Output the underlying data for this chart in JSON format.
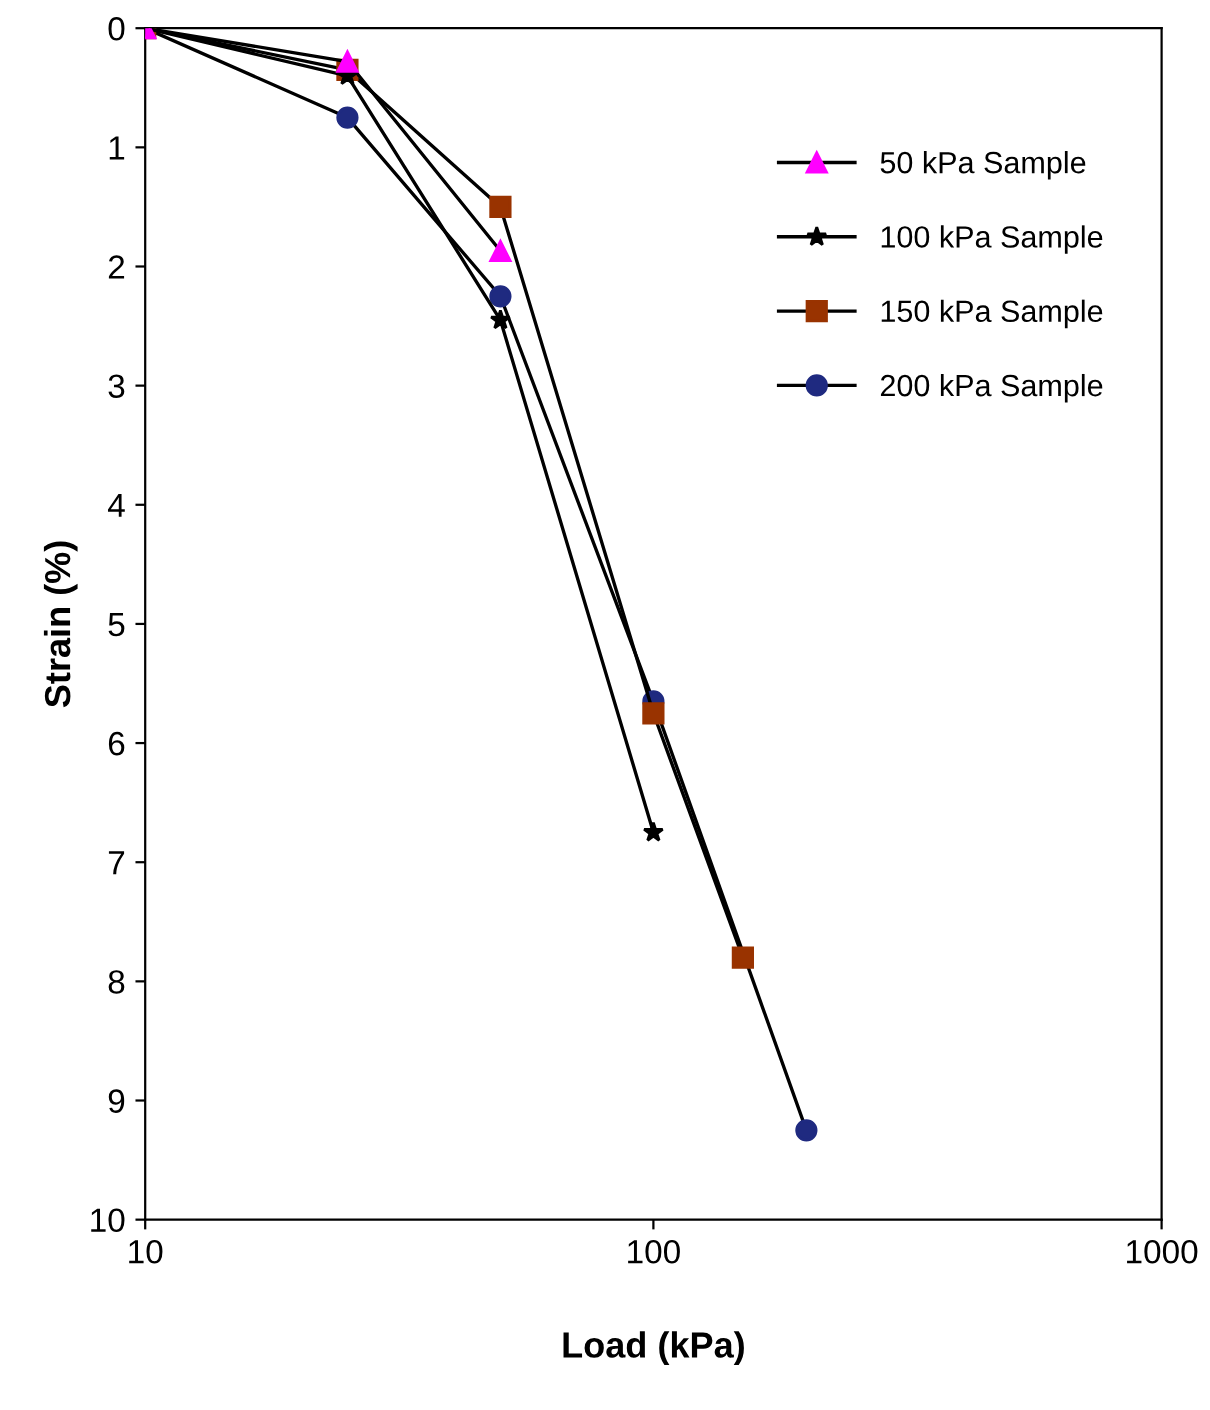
{
  "chart_data": {
    "type": "line",
    "xlabel": "Load (kPa)",
    "ylabel": "Strain (%)",
    "log": "x",
    "xlim": [
      10,
      1000
    ],
    "xticks": [
      10,
      100,
      1000
    ],
    "ylim": [
      10,
      0
    ],
    "yticks": [
      0,
      1,
      2,
      3,
      4,
      5,
      6,
      7,
      8,
      9,
      10
    ],
    "grid": false,
    "legend": "top right",
    "line_style": "solid",
    "series": [
      {
        "name": "50 kPa Sample",
        "color": "#ff00ff",
        "marker": "triangle",
        "x": [
          10,
          25,
          50
        ],
        "values": [
          0,
          0.28,
          1.87
        ]
      },
      {
        "name": "100 kPa Sample",
        "color": "#000000",
        "marker": "star",
        "x": [
          10,
          25,
          50,
          100
        ],
        "values": [
          0,
          0.4,
          2.45,
          6.75
        ]
      },
      {
        "name": "150 kPa Sample",
        "color": "#993300",
        "marker": "square",
        "x": [
          10,
          25,
          50,
          100,
          150
        ],
        "values": [
          0,
          0.35,
          1.5,
          5.75,
          7.8
        ]
      },
      {
        "name": "200 kPa Sample",
        "color": "#1f2a80",
        "marker": "circle",
        "x": [
          10,
          25,
          50,
          100,
          200
        ],
        "values": [
          0,
          0.75,
          2.25,
          5.65,
          9.25
        ]
      }
    ]
  }
}
